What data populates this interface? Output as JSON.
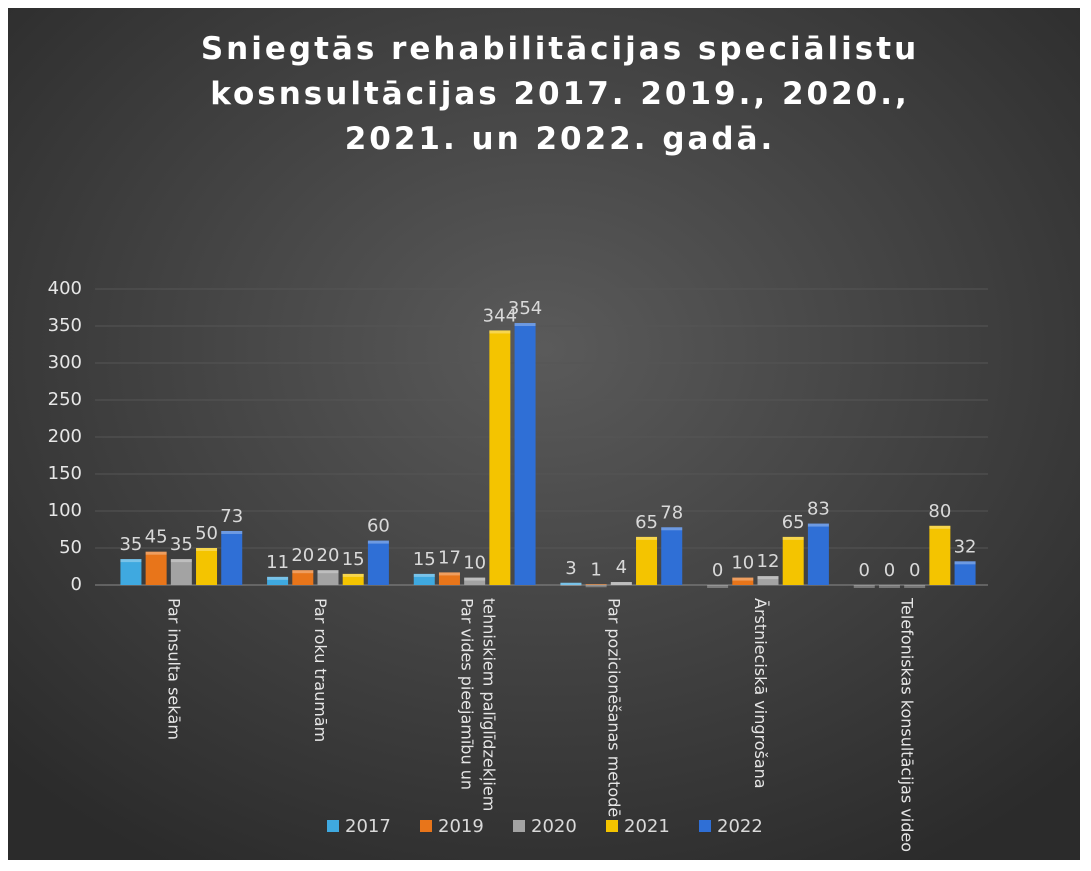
{
  "chart_data": {
    "type": "bar",
    "title": "Sniegtās rehabilitācijas speciālistu kosnsultācijas 2017. 2019., 2020., 2021. un 2022. gadā.",
    "categories": [
      "Par insulta sekām",
      "Par roku traumām",
      "Par vides pieejamību un tehniskiem palīglīdzekļiem",
      "Par pozicionēšanas metodē",
      "Ārstnieciskā vingrošana",
      "Telefoniskas konsultācijas video"
    ],
    "series": [
      {
        "name": "2017",
        "color": "#3fa9e0",
        "values": [
          35,
          11,
          15,
          3,
          0,
          0
        ]
      },
      {
        "name": "2019",
        "color": "#e8751a",
        "values": [
          45,
          20,
          17,
          1,
          10,
          0
        ]
      },
      {
        "name": "2020",
        "color": "#a3a3a3",
        "values": [
          35,
          20,
          10,
          4,
          12,
          0
        ]
      },
      {
        "name": "2021",
        "color": "#f4c400",
        "values": [
          50,
          15,
          344,
          65,
          65,
          80
        ]
      },
      {
        "name": "2022",
        "color": "#2f6fd6",
        "values": [
          73,
          60,
          354,
          78,
          83,
          32
        ]
      }
    ],
    "ylim": [
      0,
      400
    ],
    "yticks": [
      0,
      50,
      100,
      150,
      200,
      250,
      300,
      350,
      400
    ],
    "grid": true,
    "legend": "bottom"
  }
}
